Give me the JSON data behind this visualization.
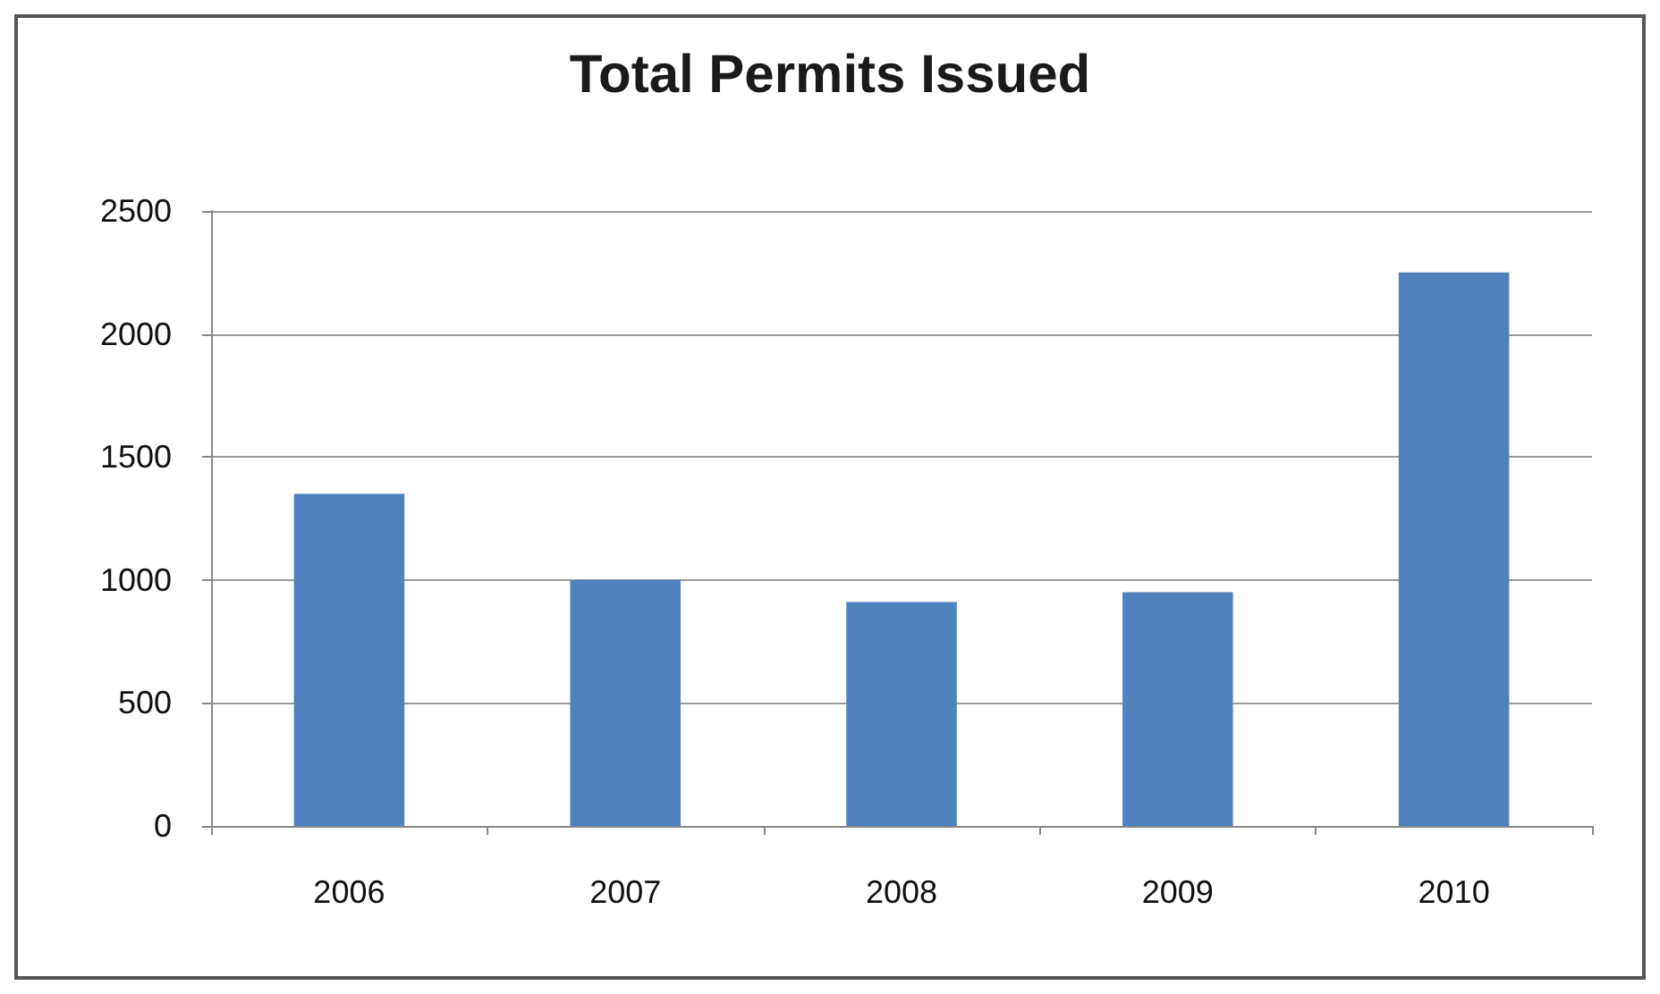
{
  "chart_data": {
    "type": "bar",
    "title": "Total Permits Issued",
    "categories": [
      "2006",
      "2007",
      "2008",
      "2009",
      "2010"
    ],
    "values": [
      1350,
      1000,
      910,
      950,
      2250
    ],
    "color": "#4f81bd",
    "ylim": [
      0,
      2500
    ],
    "yticks": [
      0,
      500,
      1000,
      1500,
      2000,
      2500
    ],
    "grid": "y"
  }
}
